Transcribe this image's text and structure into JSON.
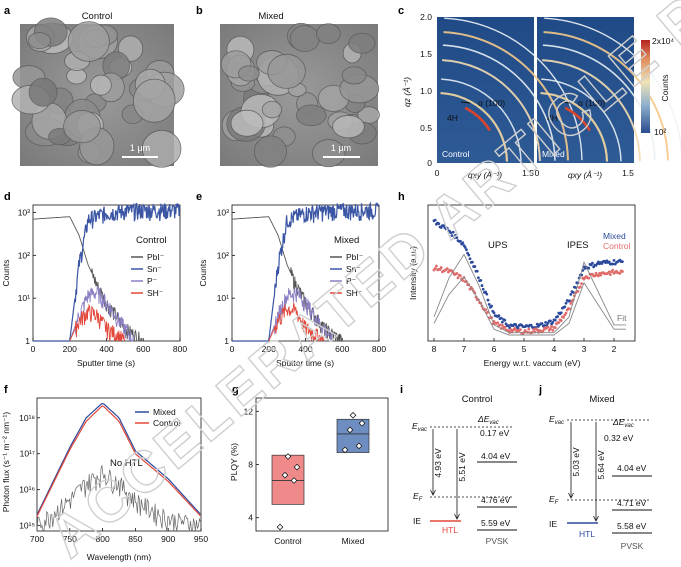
{
  "panels": {
    "a": {
      "letter": "a",
      "title": "Control",
      "scalebar": "1 μm"
    },
    "b": {
      "letter": "b",
      "title": "Mixed",
      "scalebar": "1 μm"
    },
    "c": {
      "letter": "c",
      "left_label": "Control",
      "right_label": "Mixed",
      "ylabel": "qz (Å⁻¹)",
      "xlabel": "qxy (Å⁻¹)",
      "peak_alpha": "α (100)",
      "peak_4h": "4H",
      "cbar_label": "Counts",
      "cbar_max": "2x10⁴",
      "cbar_min": "10²",
      "yticks": [
        "2.0",
        "1.5",
        "1.0",
        "0.5",
        "0"
      ],
      "xticks": [
        "0",
        "1.5"
      ]
    },
    "d": {
      "letter": "d",
      "title": "Control",
      "ylabel": "Counts",
      "xlabel": "Sputter time (s)"
    },
    "e": {
      "letter": "e",
      "title": "Mixed",
      "ylabel": "Counts",
      "xlabel": "Sputter time (s)"
    },
    "h": {
      "letter": "h",
      "ylabel": "Intensity (a.u.)",
      "xlabel": "Energy w.r.t. vaccum (eV)",
      "ups": "UPS",
      "ipes": "IPES"
    },
    "f": {
      "letter": "f",
      "ylabel": "Photon flux (s⁻¹ m⁻² nm⁻¹)",
      "xlabel": "Wavelength (nm)",
      "no_htl": "No HTL"
    },
    "g": {
      "letter": "g",
      "ylabel": "PLQY (%)"
    },
    "i": {
      "letter": "i",
      "title": "Control",
      "evac": "E",
      "evac_sub": "vac",
      "ef": "E",
      "ef_sub": "F",
      "ie": "IE",
      "dE": "ΔE",
      "dE_sub": "vac",
      "dE_val": "0.17 eV",
      "v1": "4.93 eV",
      "v2": "5.51 eV",
      "r1": "4.04 eV",
      "r2": "4.76 eV",
      "r3": "5.59 eV",
      "htl": "HTL",
      "pvsk": "PVSK"
    },
    "j": {
      "letter": "j",
      "title": "Mixed",
      "evac": "E",
      "evac_sub": "vac",
      "ef": "E",
      "ef_sub": "F",
      "ie": "IE",
      "dE": "ΔE",
      "dE_sub": "vac",
      "dE_val": "0.32 eV",
      "v1": "5.03 eV",
      "v2": "5.64 eV",
      "r1": "4.04 eV",
      "r2": "4.71 eV",
      "r3": "5.58 eV",
      "htl": "HTL",
      "pvsk": "PVSK"
    }
  },
  "watermark": "ACCELERATED ARTICLE PREVIEW",
  "chart_data": [
    {
      "panel": "d",
      "type": "line",
      "title": "Control",
      "xlabel": "Sputter time (s)",
      "ylabel": "Counts",
      "yscale": "log",
      "xlim": [
        0,
        800
      ],
      "ylim": [
        1,
        1500
      ],
      "xticks": [
        "0",
        "200",
        "400",
        "600",
        "800"
      ],
      "yticks": [
        "10³",
        "10²",
        "10¹",
        "1"
      ],
      "series": [
        {
          "name": "PbI⁻",
          "color": "#555555",
          "x": [
            0,
            100,
            200,
            250,
            300,
            350,
            400,
            450,
            500,
            600
          ],
          "y": [
            700,
            750,
            800,
            300,
            60,
            20,
            8,
            4,
            2,
            1
          ]
        },
        {
          "name": "Sn⁻",
          "color": "#3a55a4",
          "x": [
            0,
            100,
            200,
            250,
            300,
            400,
            500,
            600,
            700,
            800
          ],
          "y": [
            1,
            1,
            1,
            60,
            700,
            1000,
            1100,
            1150,
            1150,
            1150
          ]
        },
        {
          "name": "P⁻",
          "color": "#8d7fc4",
          "x": [
            200,
            250,
            300,
            350,
            400,
            450,
            500,
            550
          ],
          "y": [
            1,
            4,
            12,
            14,
            8,
            4,
            2,
            1
          ]
        },
        {
          "name": "SH⁻",
          "color": "#e2483a",
          "x": [
            200,
            250,
            300,
            350,
            400,
            450,
            500
          ],
          "y": [
            1,
            3,
            5,
            4,
            2,
            1.5,
            1
          ]
        }
      ]
    },
    {
      "panel": "e",
      "type": "line",
      "title": "Mixed",
      "xlabel": "Sputter time (s)",
      "ylabel": "Counts",
      "yscale": "log",
      "xlim": [
        0,
        800
      ],
      "ylim": [
        1,
        1500
      ],
      "xticks": [
        "0",
        "200",
        "400",
        "600",
        "800"
      ],
      "yticks": [
        "10³",
        "10²",
        "10¹",
        "1"
      ],
      "series": [
        {
          "name": "PbI⁻",
          "color": "#555555",
          "x": [
            0,
            100,
            200,
            250,
            300,
            350,
            400,
            450,
            500,
            600
          ],
          "y": [
            700,
            750,
            800,
            300,
            60,
            20,
            8,
            4,
            2,
            1
          ]
        },
        {
          "name": "Sn⁻",
          "color": "#3a55a4",
          "x": [
            0,
            100,
            200,
            250,
            300,
            400,
            500,
            600,
            700,
            800
          ],
          "y": [
            1,
            1,
            1,
            60,
            700,
            1000,
            1100,
            1150,
            1150,
            1150
          ]
        },
        {
          "name": "P⁻",
          "color": "#8d7fc4",
          "x": [
            200,
            250,
            300,
            350,
            400,
            450,
            500,
            550
          ],
          "y": [
            1,
            4,
            12,
            14,
            8,
            4,
            2,
            1
          ]
        },
        {
          "name": "SH⁻",
          "color": "#e2483a",
          "x": [
            200,
            250,
            300,
            350,
            400,
            450,
            500
          ],
          "y": [
            1,
            3,
            6,
            5,
            2,
            1.5,
            1
          ]
        }
      ]
    },
    {
      "panel": "h",
      "type": "scatter",
      "xlabel": "Energy w.r.t. vaccum (eV)",
      "ylabel": "Intensity (a.u.)",
      "xlim": [
        8,
        1.5
      ],
      "xticks": [
        "8",
        "7",
        "6",
        "5",
        "4",
        "3",
        "2"
      ],
      "series": [
        {
          "name": "Mixed",
          "color": "#2c4a9c",
          "x": [
            8,
            7.5,
            7,
            6.5,
            6,
            5.5,
            5,
            4.5,
            4,
            3.5,
            3,
            2.5,
            2
          ],
          "y": [
            0.98,
            0.9,
            0.78,
            0.5,
            0.18,
            0.08,
            0.07,
            0.08,
            0.12,
            0.3,
            0.58,
            0.62,
            0.63
          ]
        },
        {
          "name": "Control",
          "color": "#e06b6b",
          "x": [
            8,
            7.5,
            7,
            6.5,
            6,
            5.5,
            5,
            4.5,
            4,
            3.5,
            3,
            2.5,
            2
          ],
          "y": [
            0.58,
            0.55,
            0.48,
            0.3,
            0.1,
            0.04,
            0.03,
            0.04,
            0.06,
            0.22,
            0.5,
            0.53,
            0.54
          ]
        },
        {
          "name": "Fit",
          "color": "#888888",
          "x": [
            8,
            7.5,
            7,
            6.5,
            6,
            5.5,
            5,
            4.5,
            4,
            3.5,
            3,
            2.5,
            2
          ],
          "y": [
            0.1,
            0.35,
            0.5,
            0.3,
            0.05,
            0,
            0,
            0,
            0,
            0.1,
            0.45,
            0.25,
            0.05
          ]
        }
      ]
    },
    {
      "panel": "f",
      "type": "line",
      "xlabel": "Wavelength (nm)",
      "ylabel": "Photon flux (s⁻¹ m⁻² nm⁻¹)",
      "yscale": "log",
      "xlim": [
        700,
        950
      ],
      "xticks": [
        "700",
        "750",
        "800",
        "850",
        "900",
        "950"
      ],
      "yticks": [
        "10¹⁸",
        "10¹⁷",
        "10¹⁶",
        "10¹⁵"
      ],
      "series": [
        {
          "name": "Mixed",
          "color": "#2c4a9c",
          "x": [
            700,
            750,
            775,
            800,
            825,
            850,
            900,
            950
          ],
          "y": [
            2000000000000000.0,
            1.5e+17,
            1e+18,
            2.6e+18,
            1e+18,
            1.2e+17,
            2e+16,
            2000000000000000.0
          ]
        },
        {
          "name": "Control",
          "color": "#e2483a",
          "x": [
            700,
            750,
            775,
            800,
            825,
            850,
            900,
            950
          ],
          "y": [
            1800000000000000.0,
            1.3e+17,
            8e+17,
            2.2e+18,
            8e+17,
            1e+17,
            1.7e+16,
            1800000000000000.0
          ]
        },
        {
          "name": "No HTL",
          "color": "#666666",
          "x": [
            700,
            750,
            775,
            800,
            825,
            850,
            900,
            950
          ],
          "y": [
            1000000000000000.0,
            5000000000000000.0,
            1.5e+16,
            3e+16,
            1.5e+16,
            5000000000000000.0,
            1500000000000000.0,
            1000000000000000.0
          ]
        }
      ]
    },
    {
      "panel": "g",
      "type": "box",
      "ylabel": "PLQY (%)",
      "ylim": [
        3,
        13
      ],
      "yticks": [
        "4",
        "8",
        "12"
      ],
      "categories": [
        "Control",
        "Mixed"
      ],
      "boxes": [
        {
          "name": "Control",
          "color": "#f08a8a",
          "q1": 5,
          "median": 6.8,
          "q3": 8.7,
          "points": [
            3.3,
            6.8,
            7.2,
            7.8,
            8.6
          ]
        },
        {
          "name": "Mixed",
          "color": "#6e8ec2",
          "q1": 8.9,
          "median": 10.3,
          "q3": 11.4,
          "points": [
            9.1,
            9.4,
            10.6,
            11.1,
            11.7
          ]
        }
      ]
    }
  ]
}
